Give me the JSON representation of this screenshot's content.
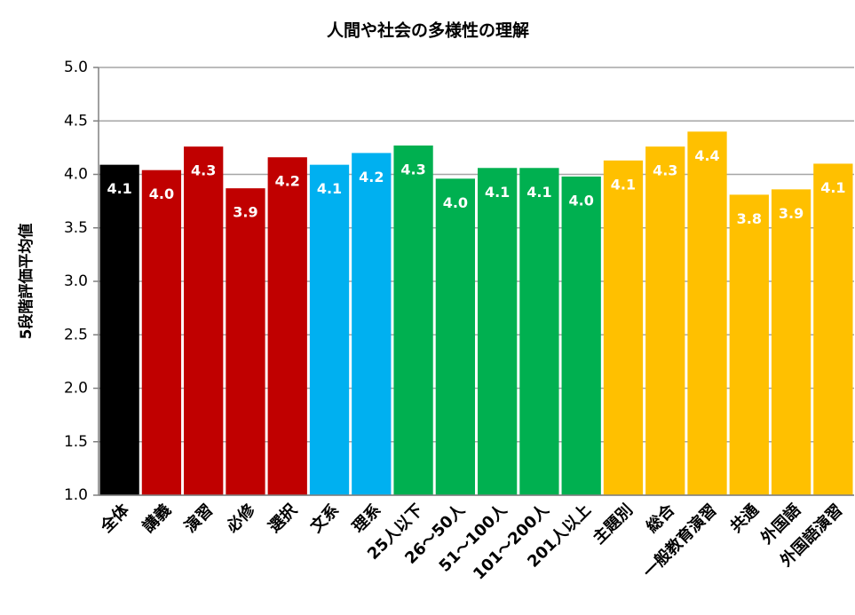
{
  "chart_data": {
    "type": "bar",
    "title": "人間や社会の多様性の理解",
    "y_label": "5段階評価平均値",
    "categories": [
      "全体",
      "講義",
      "演習",
      "必修",
      "選択",
      "文系",
      "理系",
      "25人以下",
      "26～50人",
      "51～100人",
      "101～200人",
      "201人以上",
      "主題別",
      "総合",
      "一般教育演習",
      "共通",
      "外国語",
      "外国語演習"
    ],
    "values": [
      4.09,
      4.04,
      4.26,
      3.87,
      4.16,
      4.09,
      4.2,
      4.27,
      3.96,
      4.06,
      4.06,
      3.98,
      4.13,
      4.26,
      4.4,
      3.81,
      3.86,
      4.1
    ],
    "value_labels": [
      "4.1",
      "4.0",
      "4.3",
      "3.9",
      "4.2",
      "4.1",
      "4.2",
      "4.3",
      "4.0",
      "4.1",
      "4.1",
      "4.0",
      "4.1",
      "4.3",
      "4.4",
      "3.8",
      "3.9",
      "4.1"
    ],
    "colors": [
      "#000000",
      "#c00000",
      "#c00000",
      "#c00000",
      "#c00000",
      "#00b0f0",
      "#00b0f0",
      "#00b050",
      "#00b050",
      "#00b050",
      "#00b050",
      "#00b050",
      "#ffc000",
      "#ffc000",
      "#ffc000",
      "#ffc000",
      "#ffc000",
      "#ffc000"
    ],
    "ylim": [
      1,
      5
    ],
    "yticks": [
      {
        "value": 1,
        "label": "1.0"
      },
      {
        "value": 1.5,
        "label": "1.5"
      },
      {
        "value": 2,
        "label": "2.0"
      },
      {
        "value": 2.5,
        "label": "2.5"
      },
      {
        "value": 3,
        "label": "3.0"
      },
      {
        "value": 3.5,
        "label": "3.5"
      },
      {
        "value": 4,
        "label": "4.0"
      },
      {
        "value": 4.5,
        "label": "4.5"
      },
      {
        "value": 5,
        "label": "5.0"
      }
    ],
    "grid": true
  }
}
